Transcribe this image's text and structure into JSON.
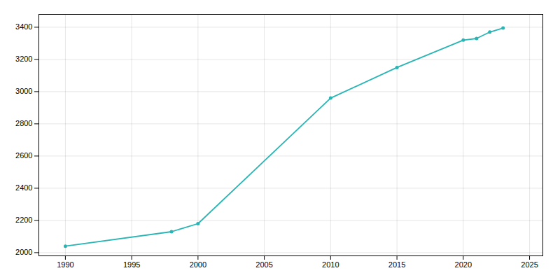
{
  "chart_data": {
    "type": "line",
    "x": [
      1990,
      1998,
      2000,
      2010,
      2015,
      2020,
      2021,
      2022,
      2023
    ],
    "values": [
      2040,
      2130,
      2180,
      2960,
      3150,
      3320,
      3330,
      3370,
      3395
    ],
    "color": "#2ab5b5",
    "marker": "circle",
    "xlim": [
      1988,
      2026
    ],
    "ylim": [
      1980,
      3480
    ],
    "xticks": [
      1990,
      1995,
      2000,
      2005,
      2010,
      2015,
      2020,
      2025
    ],
    "yticks": [
      2000,
      2200,
      2400,
      2600,
      2800,
      3000,
      3200,
      3400
    ],
    "grid": true
  }
}
